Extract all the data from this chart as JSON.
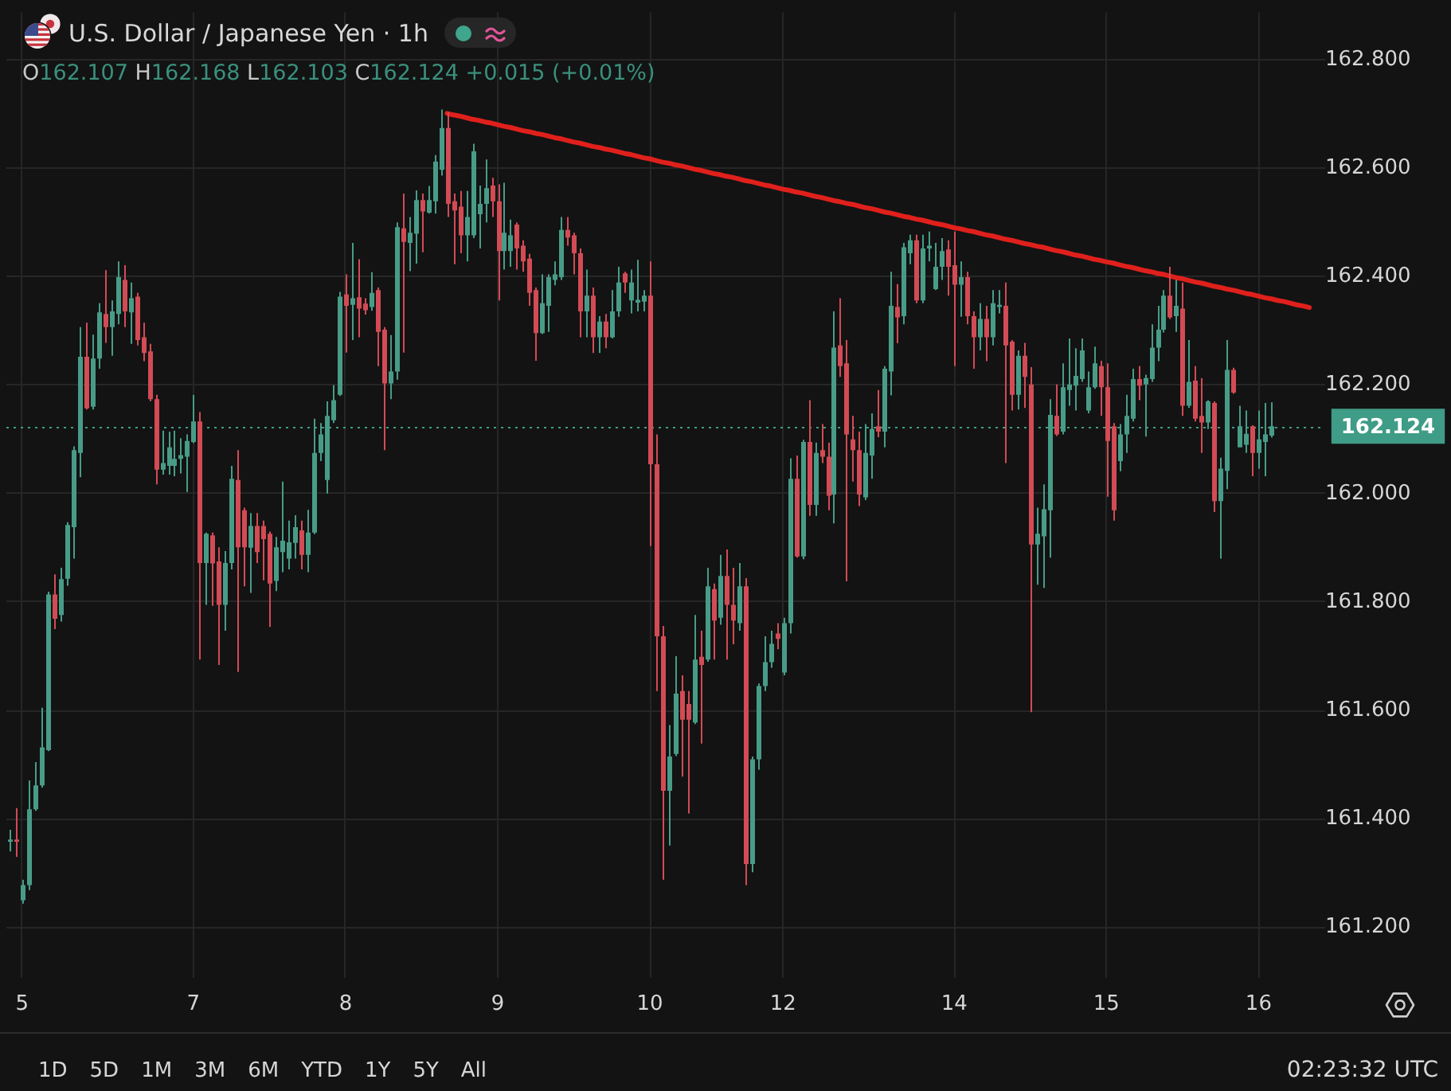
{
  "chart_data": {
    "type": "candlestick",
    "title": "U.S. Dollar / Japanese Yen · 1h",
    "subtitle": "O162.107 H162.168 L162.103 C162.124 +0.015 (+0.01%)",
    "categories": [
      null,
      null,
      "5",
      null,
      null,
      null,
      null,
      null,
      null,
      null,
      null,
      null,
      null,
      null,
      null,
      null,
      null,
      null,
      null,
      null,
      null,
      null,
      null,
      null,
      null,
      null,
      null,
      null,
      null,
      "7",
      null,
      null,
      null,
      null,
      null,
      null,
      null,
      null,
      null,
      null,
      null,
      null,
      null,
      null,
      null,
      null,
      null,
      null,
      null,
      null,
      null,
      null,
      null,
      "8",
      null,
      null,
      null,
      null,
      null,
      null,
      null,
      null,
      null,
      null,
      null,
      null,
      null,
      null,
      null,
      null,
      null,
      null,
      null,
      null,
      null,
      null,
      null,
      "9",
      null,
      null,
      null,
      null,
      null,
      null,
      null,
      null,
      null,
      null,
      null,
      null,
      null,
      null,
      null,
      null,
      null,
      null,
      null,
      null,
      null,
      null,
      null,
      "10",
      null,
      null,
      null,
      null,
      null,
      null,
      null,
      null,
      null,
      null,
      null,
      null,
      null,
      null,
      null,
      null,
      null,
      null,
      null,
      null,
      "12",
      null,
      null,
      null,
      null,
      null,
      null,
      null,
      null,
      null,
      null,
      null,
      null,
      null,
      null,
      null,
      null,
      null,
      null,
      null,
      null,
      null,
      null,
      null,
      null,
      null,
      null,
      "14",
      null,
      null,
      null,
      null,
      null,
      null,
      null,
      null,
      null,
      null,
      null,
      null,
      null,
      null,
      null,
      null,
      null,
      null,
      null,
      null,
      null,
      null,
      null,
      "15",
      null,
      null,
      null,
      null,
      null,
      null,
      null,
      null,
      null,
      null,
      null,
      null,
      null,
      null,
      null,
      null,
      null,
      null,
      null,
      null,
      null,
      null,
      null,
      "16",
      null,
      null,
      null,
      null,
      null,
      null,
      null,
      null,
      null,
      null
    ],
    "ohlc": [
      [
        161.358,
        161.38,
        161.34,
        161.362
      ],
      [
        161.362,
        161.42,
        161.33,
        161.358
      ],
      [
        161.25,
        161.288,
        161.244,
        161.278
      ],
      [
        161.278,
        161.471,
        161.269,
        161.418
      ],
      [
        161.418,
        161.505,
        161.415,
        161.462
      ],
      [
        161.462,
        161.605,
        161.458,
        161.532
      ],
      [
        161.527,
        161.819,
        161.525,
        161.814
      ],
      [
        161.814,
        161.851,
        161.75,
        161.769
      ],
      [
        161.776,
        161.863,
        161.764,
        161.842
      ],
      [
        161.843,
        161.947,
        161.83,
        161.942
      ],
      [
        161.938,
        162.087,
        161.88,
        162.08
      ],
      [
        162.075,
        162.307,
        162.03,
        162.252
      ],
      [
        162.252,
        162.315,
        162.155,
        162.157
      ],
      [
        162.16,
        162.293,
        162.155,
        162.249
      ],
      [
        162.249,
        162.351,
        162.23,
        162.334
      ],
      [
        162.331,
        162.412,
        162.278,
        162.307
      ],
      [
        162.307,
        162.356,
        162.254,
        162.336
      ],
      [
        162.331,
        162.428,
        162.312,
        162.399
      ],
      [
        162.394,
        162.421,
        162.307,
        162.336
      ],
      [
        162.334,
        162.389,
        162.276,
        162.36
      ],
      [
        162.363,
        162.37,
        162.273,
        162.283
      ],
      [
        162.288,
        162.315,
        162.244,
        162.259
      ],
      [
        162.262,
        162.276,
        162.17,
        162.174
      ],
      [
        162.174,
        162.182,
        162.017,
        162.044
      ],
      [
        162.044,
        162.116,
        162.035,
        162.056
      ],
      [
        162.051,
        162.114,
        162.035,
        162.085
      ],
      [
        162.051,
        162.116,
        162.032,
        162.064
      ],
      [
        162.064,
        162.102,
        162.037,
        162.071
      ],
      [
        162.068,
        162.109,
        162.003,
        162.097
      ],
      [
        162.095,
        162.182,
        162.093,
        162.133
      ],
      [
        162.133,
        162.15,
        161.694,
        161.872
      ],
      [
        161.872,
        161.928,
        161.795,
        161.926
      ],
      [
        161.923,
        161.928,
        161.793,
        161.871
      ],
      [
        161.875,
        161.901,
        161.684,
        161.795
      ],
      [
        161.795,
        161.894,
        161.747,
        161.872
      ],
      [
        161.872,
        162.051,
        161.86,
        162.027
      ],
      [
        162.025,
        162.08,
        161.671,
        161.901
      ],
      [
        161.969,
        161.974,
        161.829,
        161.901
      ],
      [
        161.9,
        161.964,
        161.817,
        161.94
      ],
      [
        161.94,
        161.964,
        161.872,
        161.892
      ],
      [
        161.94,
        161.95,
        161.84,
        161.916
      ],
      [
        161.926,
        161.93,
        161.754,
        161.834
      ],
      [
        161.839,
        161.92,
        161.82,
        161.901
      ],
      [
        161.892,
        162.022,
        161.855,
        161.913
      ],
      [
        161.88,
        161.95,
        161.86,
        161.91
      ],
      [
        161.909,
        161.96,
        161.88,
        161.938
      ],
      [
        161.932,
        161.95,
        161.86,
        161.887
      ],
      [
        161.887,
        161.97,
        161.855,
        161.928
      ],
      [
        161.928,
        162.138,
        161.925,
        162.075
      ],
      [
        162.075,
        162.13,
        162.06,
        162.109
      ],
      [
        162.025,
        162.17,
        162.0,
        162.143
      ],
      [
        162.135,
        162.2,
        162.13,
        162.172
      ],
      [
        162.182,
        162.372,
        162.18,
        162.363
      ],
      [
        162.367,
        162.404,
        162.26,
        162.346
      ],
      [
        162.348,
        162.462,
        162.283,
        162.36
      ],
      [
        162.362,
        162.432,
        162.288,
        162.341
      ],
      [
        162.35,
        162.36,
        162.33,
        162.338
      ],
      [
        162.344,
        162.408,
        162.337,
        162.37
      ],
      [
        162.375,
        162.38,
        162.235,
        162.298
      ],
      [
        162.302,
        162.307,
        162.08,
        162.203
      ],
      [
        162.203,
        162.292,
        162.174,
        162.225
      ],
      [
        162.225,
        162.5,
        162.21,
        162.491
      ],
      [
        162.489,
        162.553,
        162.26,
        162.464
      ],
      [
        162.462,
        162.51,
        162.41,
        162.481
      ],
      [
        162.479,
        162.559,
        162.424,
        162.541
      ],
      [
        162.541,
        162.553,
        162.445,
        162.52
      ],
      [
        162.518,
        162.567,
        162.516,
        162.541
      ],
      [
        162.539,
        162.624,
        162.516,
        162.612
      ],
      [
        162.597,
        162.708,
        162.586,
        162.674
      ],
      [
        162.674,
        162.703,
        162.51,
        162.534
      ],
      [
        162.539,
        162.553,
        162.423,
        162.522
      ],
      [
        162.529,
        162.558,
        162.443,
        162.476
      ],
      [
        162.476,
        162.558,
        162.428,
        162.51
      ],
      [
        162.476,
        162.645,
        162.471,
        162.631
      ],
      [
        162.515,
        162.568,
        162.452,
        162.534
      ],
      [
        162.534,
        162.616,
        162.5,
        162.563
      ],
      [
        162.568,
        162.582,
        162.51,
        162.539
      ],
      [
        162.539,
        162.57,
        162.356,
        162.447
      ],
      [
        162.447,
        162.573,
        162.413,
        162.481
      ],
      [
        162.447,
        162.505,
        162.418,
        162.476
      ],
      [
        162.496,
        162.5,
        162.413,
        162.452
      ],
      [
        162.457,
        162.467,
        162.409,
        162.428
      ],
      [
        162.433,
        162.442,
        162.346,
        162.37
      ],
      [
        162.375,
        162.38,
        162.245,
        162.296
      ],
      [
        162.296,
        162.404,
        162.294,
        162.351
      ],
      [
        162.346,
        162.404,
        162.298,
        162.399
      ],
      [
        162.394,
        162.428,
        162.384,
        162.404
      ],
      [
        162.399,
        162.51,
        162.394,
        162.486
      ],
      [
        162.486,
        162.51,
        162.457,
        162.472
      ],
      [
        162.476,
        162.481,
        162.404,
        162.443
      ],
      [
        162.443,
        162.452,
        162.288,
        162.336
      ],
      [
        162.336,
        162.413,
        162.288,
        162.365
      ],
      [
        162.365,
        162.38,
        162.259,
        162.288
      ],
      [
        162.288,
        162.327,
        162.259,
        162.317
      ],
      [
        162.317,
        162.331,
        162.268,
        162.288
      ],
      [
        162.288,
        162.375,
        162.286,
        162.336
      ],
      [
        162.336,
        162.418,
        162.326,
        162.389
      ],
      [
        162.406,
        162.409,
        162.37,
        162.389
      ],
      [
        162.356,
        162.413,
        162.332,
        162.389
      ],
      [
        162.352,
        162.431,
        162.336,
        162.357
      ],
      [
        162.354,
        162.375,
        162.336,
        162.365
      ],
      [
        162.365,
        162.428,
        161.903,
        162.054
      ],
      [
        162.054,
        162.109,
        161.636,
        161.737
      ],
      [
        161.737,
        161.756,
        161.288,
        161.452
      ],
      [
        161.452,
        161.573,
        161.351,
        161.515
      ],
      [
        161.52,
        161.7,
        161.516,
        161.631
      ],
      [
        161.636,
        161.665,
        161.478,
        161.583
      ],
      [
        161.612,
        161.636,
        161.41,
        161.583
      ],
      [
        161.578,
        161.776,
        161.575,
        161.694
      ],
      [
        161.699,
        161.747,
        161.539,
        161.684
      ],
      [
        161.694,
        161.863,
        161.69,
        161.829
      ],
      [
        161.824,
        161.834,
        161.694,
        161.766
      ],
      [
        161.771,
        161.887,
        161.758,
        161.848
      ],
      [
        161.848,
        161.897,
        161.694,
        161.795
      ],
      [
        161.795,
        161.863,
        161.722,
        161.766
      ],
      [
        161.761,
        161.872,
        161.747,
        161.829
      ],
      [
        161.829,
        161.844,
        161.278,
        161.317
      ],
      [
        161.317,
        161.515,
        161.302,
        161.51
      ],
      [
        161.51,
        161.65,
        161.491,
        161.645
      ],
      [
        161.645,
        161.737,
        161.636,
        161.689
      ],
      [
        161.689,
        161.747,
        161.679,
        161.723
      ],
      [
        161.742,
        161.761,
        161.713,
        161.732
      ],
      [
        161.67,
        161.771,
        161.665,
        161.761
      ],
      [
        161.761,
        162.065,
        161.742,
        162.027
      ],
      [
        162.027,
        162.07,
        161.882,
        161.884
      ],
      [
        161.884,
        162.099,
        161.879,
        162.095
      ],
      [
        162.095,
        162.172,
        161.959,
        161.979
      ],
      [
        161.979,
        162.094,
        161.959,
        162.075
      ],
      [
        162.08,
        162.128,
        162.056,
        162.068
      ],
      [
        162.068,
        162.094,
        161.969,
        161.996
      ],
      [
        161.998,
        162.336,
        161.945,
        162.269
      ],
      [
        162.273,
        162.36,
        162.215,
        162.235
      ],
      [
        162.24,
        162.283,
        161.838,
        162.109
      ],
      [
        162.1,
        162.143,
        162.022,
        162.08
      ],
      [
        162.08,
        162.114,
        161.977,
        161.998
      ],
      [
        161.993,
        162.128,
        161.988,
        162.075
      ],
      [
        162.07,
        162.148,
        162.027,
        162.119
      ],
      [
        162.124,
        162.191,
        162.104,
        162.114
      ],
      [
        162.114,
        162.235,
        162.085,
        162.23
      ],
      [
        162.225,
        162.409,
        162.181,
        162.346
      ],
      [
        162.344,
        162.386,
        162.277,
        162.325
      ],
      [
        162.327,
        162.462,
        162.312,
        162.454
      ],
      [
        162.443,
        162.477,
        162.423,
        162.467
      ],
      [
        162.467,
        162.477,
        162.351,
        162.356
      ],
      [
        162.356,
        162.477,
        162.351,
        162.452
      ],
      [
        162.452,
        162.483,
        162.428,
        162.457
      ],
      [
        162.377,
        162.462,
        162.375,
        162.418
      ],
      [
        162.418,
        162.471,
        162.394,
        162.447
      ],
      [
        162.45,
        162.467,
        162.365,
        162.418
      ],
      [
        162.421,
        162.483,
        162.235,
        162.385
      ],
      [
        162.385,
        162.428,
        162.326,
        162.399
      ],
      [
        162.399,
        162.409,
        162.312,
        162.327
      ],
      [
        162.327,
        162.336,
        162.23,
        162.288
      ],
      [
        162.288,
        162.351,
        162.264,
        162.322
      ],
      [
        162.322,
        162.346,
        162.244,
        162.288
      ],
      [
        162.288,
        162.375,
        162.273,
        162.351
      ],
      [
        162.344,
        162.375,
        162.332,
        162.348
      ],
      [
        162.346,
        162.389,
        162.056,
        162.273
      ],
      [
        162.28,
        162.283,
        162.153,
        162.182
      ],
      [
        162.182,
        162.264,
        162.155,
        162.254
      ],
      [
        162.254,
        162.278,
        162.158,
        162.215
      ],
      [
        162.201,
        162.233,
        161.597,
        161.906
      ],
      [
        161.906,
        161.974,
        161.832,
        161.926
      ],
      [
        161.921,
        162.017,
        161.826,
        161.971
      ],
      [
        161.969,
        162.174,
        161.882,
        162.145
      ],
      [
        162.143,
        162.201,
        162.106,
        162.109
      ],
      [
        162.114,
        162.24,
        162.109,
        162.196
      ],
      [
        162.191,
        162.286,
        162.162,
        162.201
      ],
      [
        162.199,
        162.268,
        162.153,
        162.217
      ],
      [
        162.211,
        162.286,
        162.206,
        162.264
      ],
      [
        162.153,
        162.225,
        162.148,
        162.196
      ],
      [
        162.196,
        162.271,
        162.193,
        162.24
      ],
      [
        162.235,
        162.245,
        162.143,
        162.196
      ],
      [
        162.196,
        162.24,
        161.994,
        162.097
      ],
      [
        162.124,
        162.13,
        161.95,
        161.969
      ],
      [
        162.06,
        162.128,
        162.041,
        162.109
      ],
      [
        162.109,
        162.182,
        162.075,
        162.143
      ],
      [
        162.138,
        162.23,
        162.133,
        162.211
      ],
      [
        162.211,
        162.235,
        162.172,
        162.199
      ],
      [
        162.201,
        162.219,
        162.105,
        162.213
      ],
      [
        162.211,
        162.312,
        162.206,
        162.269
      ],
      [
        162.269,
        162.346,
        162.244,
        162.302
      ],
      [
        162.302,
        162.375,
        162.297,
        162.365
      ],
      [
        162.365,
        162.418,
        162.322,
        162.325
      ],
      [
        162.327,
        162.394,
        162.298,
        162.346
      ],
      [
        162.341,
        162.389,
        162.143,
        162.162
      ],
      [
        162.162,
        162.283,
        162.158,
        162.206
      ],
      [
        162.208,
        162.235,
        162.133,
        162.138
      ],
      [
        162.143,
        162.213,
        162.075,
        162.131
      ],
      [
        162.131,
        162.172,
        162.119,
        162.17
      ],
      [
        162.167,
        162.17,
        161.966,
        161.986
      ],
      [
        161.986,
        162.066,
        161.88,
        162.046
      ],
      [
        162.042,
        162.283,
        162.008,
        162.228
      ],
      [
        162.228,
        162.232,
        162.184,
        162.186
      ],
      [
        162.085,
        162.162,
        162.085,
        162.124
      ],
      [
        162.09,
        162.153,
        162.075,
        162.11
      ],
      [
        162.124,
        162.126,
        162.032,
        162.075
      ],
      [
        162.075,
        162.153,
        162.046,
        162.1
      ],
      [
        162.095,
        162.167,
        162.032,
        162.109
      ],
      [
        162.107,
        162.168,
        162.103,
        162.124
      ],
      null,
      null,
      null,
      null,
      null,
      null,
      null,
      null
    ],
    "colors": [
      "#489c87",
      "#d24b55",
      "#489c87",
      "#489c87",
      "#489c87",
      "#489c87",
      "#489c87",
      "#d24b55",
      "#489c87",
      "#489c87",
      "#489c87",
      "#489c87",
      "#d24b55",
      "#489c87",
      "#489c87",
      "#d24b55",
      "#489c87",
      "#489c87",
      "#d24b55",
      "#489c87",
      "#d24b55",
      "#d24b55",
      "#d24b55",
      "#d24b55",
      "#489c87",
      "#489c87",
      "#489c87",
      "#489c87",
      "#489c87",
      "#489c87",
      "#d24b55",
      "#489c87",
      "#d24b55",
      "#d24b55",
      "#489c87",
      "#489c87",
      "#d24b55",
      "#d24b55",
      "#489c87",
      "#d24b55",
      "#d24b55",
      "#d24b55",
      "#489c87",
      "#489c87",
      "#489c87",
      "#489c87",
      "#d24b55",
      "#489c87",
      "#489c87",
      "#489c87",
      "#489c87",
      "#489c87",
      "#489c87",
      "#d24b55",
      "#489c87",
      "#d24b55",
      "#d24b55",
      "#489c87",
      "#d24b55",
      "#d24b55",
      "#489c87",
      "#489c87",
      "#d24b55",
      "#489c87",
      "#489c87",
      "#d24b55",
      "#489c87",
      "#489c87",
      "#489c87",
      "#d24b55",
      "#d24b55",
      "#d24b55",
      "#489c87",
      "#489c87",
      "#489c87",
      "#489c87",
      "#d24b55",
      "#d24b55",
      "#489c87",
      "#489c87",
      "#d24b55",
      "#d24b55",
      "#d24b55",
      "#d24b55",
      "#489c87",
      "#489c87",
      "#489c87",
      "#489c87",
      "#d24b55",
      "#d24b55",
      "#d24b55",
      "#489c87",
      "#d24b55",
      "#489c87",
      "#d24b55",
      "#489c87",
      "#489c87",
      "#d24b55",
      "#489c87",
      "#489c87",
      "#489c87",
      "#d24b55",
      "#d24b55",
      "#d24b55",
      "#489c87",
      "#489c87",
      "#d24b55",
      "#d24b55",
      "#489c87",
      "#d24b55",
      "#489c87",
      "#d24b55",
      "#489c87",
      "#d24b55",
      "#d24b55",
      "#489c87",
      "#d24b55",
      "#489c87",
      "#489c87",
      "#489c87",
      "#489c87",
      "#d24b55",
      "#489c87",
      "#489c87",
      "#d24b55",
      "#489c87",
      "#d24b55",
      "#489c87",
      "#d24b55",
      "#d24b55",
      "#489c87",
      "#d24b55",
      "#d24b55",
      "#d24b55",
      "#d24b55",
      "#489c87",
      "#489c87",
      "#d24b55",
      "#489c87",
      "#489c87",
      "#d24b55",
      "#489c87",
      "#489c87",
      "#d24b55",
      "#489c87",
      "#489c87",
      "#489c87",
      "#489c87",
      "#d24b55",
      "#d24b55",
      "#489c87",
      "#d24b55",
      "#d24b55",
      "#489c87",
      "#d24b55",
      "#489c87",
      "#489c87",
      "#d24b55",
      "#d24b55",
      "#489c87",
      "#d24b55",
      "#d24b55",
      "#489c87",
      "#489c87",
      "#489c87",
      "#d24b55",
      "#489c87",
      "#489c87",
      "#489c87",
      "#489c87",
      "#489c87",
      "#489c87",
      "#d24b55",
      "#d24b55",
      "#d24b55",
      "#489c87",
      "#489c87",
      "#489c87",
      "#d24b55",
      "#489c87",
      "#489c87",
      "#489c87",
      "#489c87",
      "#d24b55",
      "#489c87",
      "#d24b55",
      "#489c87",
      "#d24b55",
      "#d24b55",
      "#489c87",
      "#d24b55",
      "#489c87",
      "#489c87",
      "#d24b55",
      "#489c87",
      "#489c87",
      "#d24b55",
      "#489c87",
      "#489c87",
      "#489c87",
      null,
      null,
      null,
      null,
      null,
      null,
      null,
      null
    ],
    "series": [
      {
        "type": "line",
        "color": "#e0201c",
        "values": [
          null,
          null,
          null,
          null,
          null,
          null,
          null,
          null,
          null,
          null,
          null,
          null,
          null,
          null,
          null,
          null,
          null,
          null,
          null,
          null,
          null,
          null,
          null,
          null,
          null,
          null,
          null,
          null,
          null,
          null,
          null,
          null,
          null,
          null,
          null,
          null,
          null,
          null,
          null,
          null,
          null,
          null,
          null,
          null,
          null,
          null,
          null,
          null,
          null,
          null,
          null,
          null,
          null,
          null,
          null,
          null,
          null,
          null,
          null,
          null,
          null,
          null,
          null,
          null,
          null,
          null,
          null,
          null,
          null,
          162.701,
          162.698,
          162.696,
          162.693,
          162.69,
          162.688,
          162.685,
          162.683,
          162.68,
          162.677,
          162.675,
          162.672,
          162.669,
          162.667,
          162.664,
          162.662,
          162.659,
          162.656,
          162.654,
          162.651,
          162.648,
          162.646,
          162.643,
          162.64,
          162.638,
          162.635,
          162.633,
          162.63,
          162.627,
          162.625,
          162.622,
          162.619,
          162.617,
          162.614,
          162.611,
          162.609,
          162.606,
          162.604,
          162.601,
          162.598,
          162.596,
          162.593,
          162.59,
          162.588,
          162.585,
          162.583,
          162.58,
          162.577,
          162.575,
          162.572,
          162.569,
          162.567,
          162.564,
          162.561,
          162.559,
          162.556,
          162.554,
          162.551,
          162.548,
          162.546,
          162.543,
          162.54,
          162.538,
          162.535,
          162.533,
          162.53,
          162.527,
          162.525,
          162.522,
          162.519,
          162.517,
          162.514,
          162.511,
          162.509,
          162.506,
          162.504,
          162.501,
          162.498,
          162.496,
          162.493,
          162.49,
          162.488,
          162.485,
          162.483,
          162.48,
          162.477,
          162.475,
          162.472,
          162.469,
          162.467,
          162.464,
          162.461,
          162.459,
          162.456,
          162.454,
          162.451,
          162.448,
          162.446,
          162.443,
          162.44,
          162.438,
          162.435,
          162.432,
          162.43,
          162.427,
          162.425,
          162.422,
          162.419,
          162.417,
          162.414,
          162.411,
          162.409,
          162.406,
          162.404,
          162.401,
          162.398,
          162.396,
          162.393,
          162.39,
          162.388,
          162.385,
          162.382,
          162.38,
          162.377,
          162.375,
          162.372,
          162.369,
          162.367,
          162.364,
          162.361,
          162.359,
          162.356,
          162.354,
          162.351,
          162.348,
          162.346,
          162.343,
          null,
          null
        ]
      }
    ],
    "ylim": [
      161.107,
      162.887
    ],
    "yticks": [
      {
        "value": 161.2,
        "label": "161.200"
      },
      {
        "value": 161.4,
        "label": "161.400"
      },
      {
        "value": 161.6,
        "label": "161.600"
      },
      {
        "value": 161.8,
        "label": "161.800"
      },
      {
        "value": 162,
        "label": "162.000"
      },
      {
        "value": 162.2,
        "label": "162.200"
      },
      {
        "value": 162.4,
        "label": "162.400"
      },
      {
        "value": 162.6,
        "label": "162.600"
      },
      {
        "value": 162.8,
        "label": "162.800"
      }
    ],
    "grid": true,
    "ref_lines": [
      {
        "axis": "y",
        "value": 162.124,
        "label": "162.124",
        "color": "#3f9c86",
        "line_style": "dotted"
      }
    ],
    "annotations": [
      "1D",
      "5D",
      "1M",
      "3M",
      "6M",
      "YTD",
      "1Y",
      "5Y",
      "All",
      "02:23:32 UTC"
    ]
  }
}
